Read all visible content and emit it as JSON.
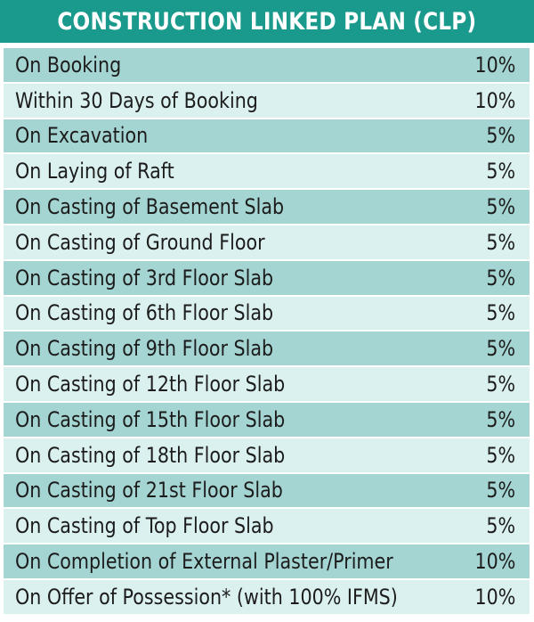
{
  "header": {
    "title": "CONSTRUCTION LINKED PLAN (CLP)"
  },
  "colors": {
    "header_bg": "#1a9a8c",
    "row_dark": "#a4d5d2",
    "row_light": "#dbf1ef",
    "text": "#1c1c1c"
  },
  "rows": [
    {
      "stage": "On Booking",
      "percent": "10%"
    },
    {
      "stage": "Within 30 Days of Booking",
      "percent": "10%"
    },
    {
      "stage": "On Excavation",
      "percent": "5%"
    },
    {
      "stage": "On Laying of Raft",
      "percent": "5%"
    },
    {
      "stage": "On Casting of Basement Slab",
      "percent": "5%"
    },
    {
      "stage": "On Casting of Ground Floor",
      "percent": "5%"
    },
    {
      "stage": "On Casting of 3rd Floor Slab",
      "percent": "5%"
    },
    {
      "stage": "On Casting of 6th Floor Slab",
      "percent": "5%"
    },
    {
      "stage": "On Casting of 9th Floor Slab",
      "percent": "5%"
    },
    {
      "stage": "On Casting of 12th Floor Slab",
      "percent": "5%"
    },
    {
      "stage": "On Casting of 15th Floor Slab",
      "percent": "5%"
    },
    {
      "stage": "On Casting of 18th Floor Slab",
      "percent": "5%"
    },
    {
      "stage": "On Casting of 21st Floor Slab",
      "percent": "5%"
    },
    {
      "stage": "On Casting of Top Floor Slab",
      "percent": "5%"
    },
    {
      "stage": "On Completion of External Plaster/Primer",
      "percent": "10%"
    },
    {
      "stage": "On Offer of Possession* (with 100% IFMS)",
      "percent": "10%"
    }
  ]
}
